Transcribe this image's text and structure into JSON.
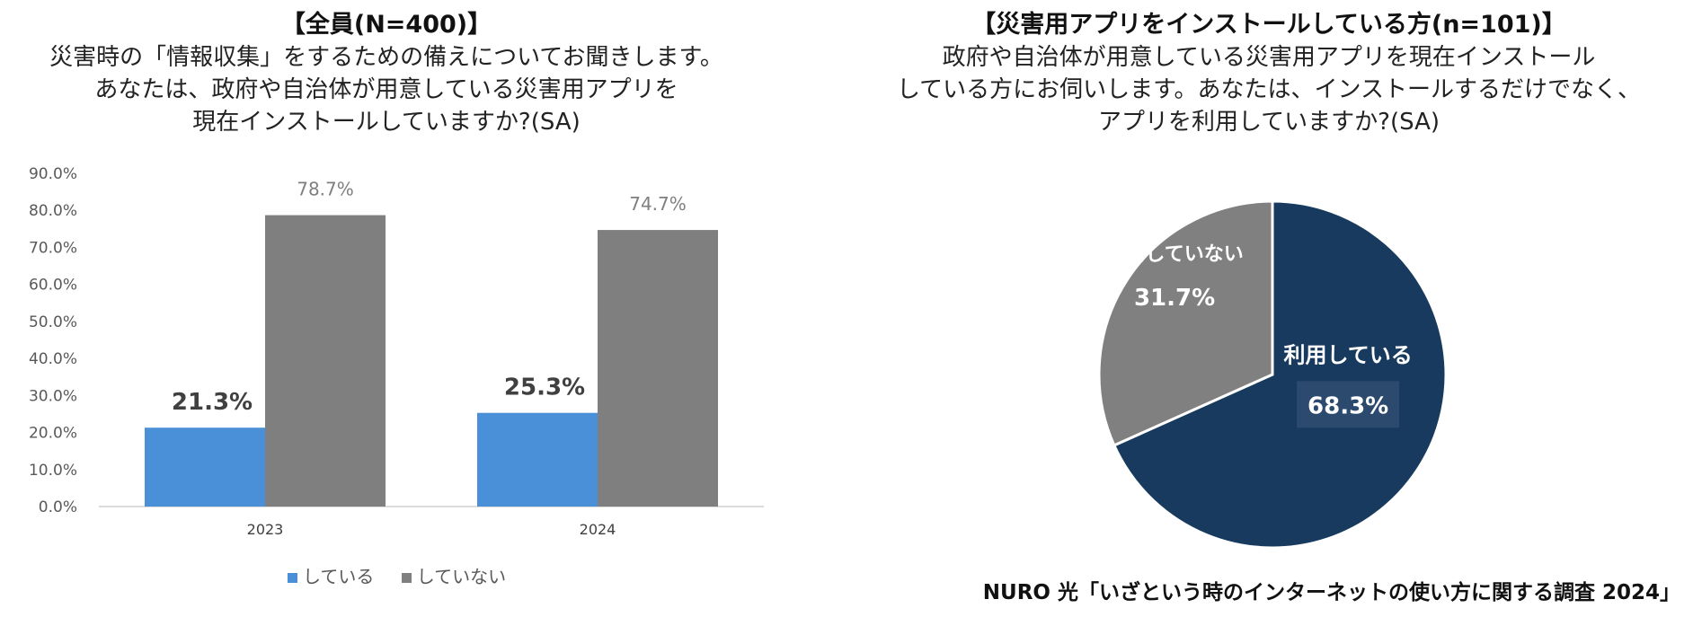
{
  "left": {
    "title_head": "【全員(N=400)】",
    "title_lines": [
      "災害時の「情報収集」をするための備えについてお聞きします。",
      "あなたは、政府や自治体が用意している災害用アプリを",
      "現在インストールしていますか?(SA)"
    ],
    "legend": [
      {
        "label": "している",
        "color": "#4a90d9"
      },
      {
        "label": "していない",
        "color": "#7f7f7f"
      }
    ]
  },
  "right": {
    "title_head": "【災害用アプリをインストールしている方(n=101)】",
    "title_lines": [
      "政府や自治体が用意している災害用アプリを現在インストール",
      "している方にお伺いします。あなたは、インストールするだけでなく、",
      "アプリを利用していますか?(SA)"
    ]
  },
  "footer": "NURO 光「いざという時のインターネットの使い方に関する調査 2024」",
  "chart_data": [
    {
      "type": "bar",
      "categories": [
        "2023",
        "2024"
      ],
      "series": [
        {
          "name": "している",
          "values": [
            21.3,
            25.3
          ],
          "color": "#4a90d9"
        },
        {
          "name": "していない",
          "values": [
            78.7,
            74.7
          ],
          "color": "#7f7f7f"
        }
      ],
      "data_labels": {
        "している": [
          "21.3%",
          "25.3%"
        ],
        "していない": [
          "78.7%",
          "74.7%"
        ]
      },
      "yticks": [
        "0.0%",
        "10.0%",
        "20.0%",
        "30.0%",
        "40.0%",
        "50.0%",
        "60.0%",
        "70.0%",
        "80.0%",
        "90.0%"
      ],
      "ylim": [
        0,
        90
      ],
      "grid": false,
      "legend_position": "bottom"
    },
    {
      "type": "pie",
      "slices": [
        {
          "label": "利用している",
          "value": 68.3,
          "text": "68.3%",
          "color": "#173a5e"
        },
        {
          "label": "利用していない",
          "value": 31.7,
          "text": "31.7%",
          "color": "#808080"
        }
      ]
    }
  ]
}
